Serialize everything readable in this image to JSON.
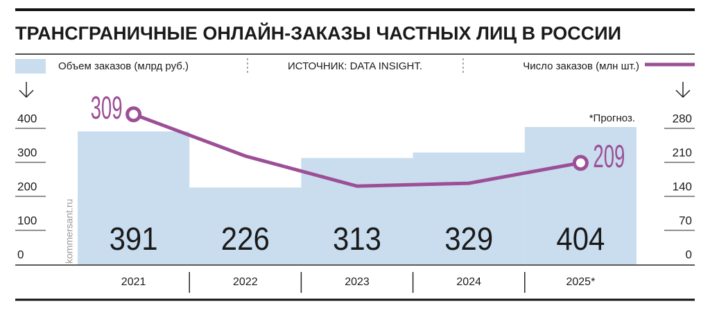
{
  "chart_data": {
    "type": "bar",
    "title": "ТРАНСГРАНИЧНЫЕ ОНЛАЙН-ЗАКАЗЫ ЧАСТНЫХ ЛИЦ В РОССИИ",
    "source": "ИСТОЧНИК: DATA INSIGHT.",
    "annotation": "*Прогноз.",
    "watermark": "kommersant.ru",
    "categories": [
      "2021",
      "2022",
      "2023",
      "2024",
      "2025*"
    ],
    "series": [
      {
        "name": "Объем заказов (млрд руб.)",
        "color": "#c9ddee",
        "values": [
          391,
          226,
          313,
          329,
          404
        ]
      },
      {
        "name": "Число заказов (млн шт.)",
        "color": "#9c4f97",
        "axis": "y2",
        "type": "line",
        "values": [
          309,
          223,
          161,
          167,
          209
        ]
      }
    ],
    "ylim": [
      0,
      400
    ],
    "yticks": [
      0,
      100,
      200,
      300,
      400
    ],
    "y2lim": [
      0,
      280
    ],
    "y2ticks": [
      0,
      70,
      140,
      210,
      280
    ]
  }
}
